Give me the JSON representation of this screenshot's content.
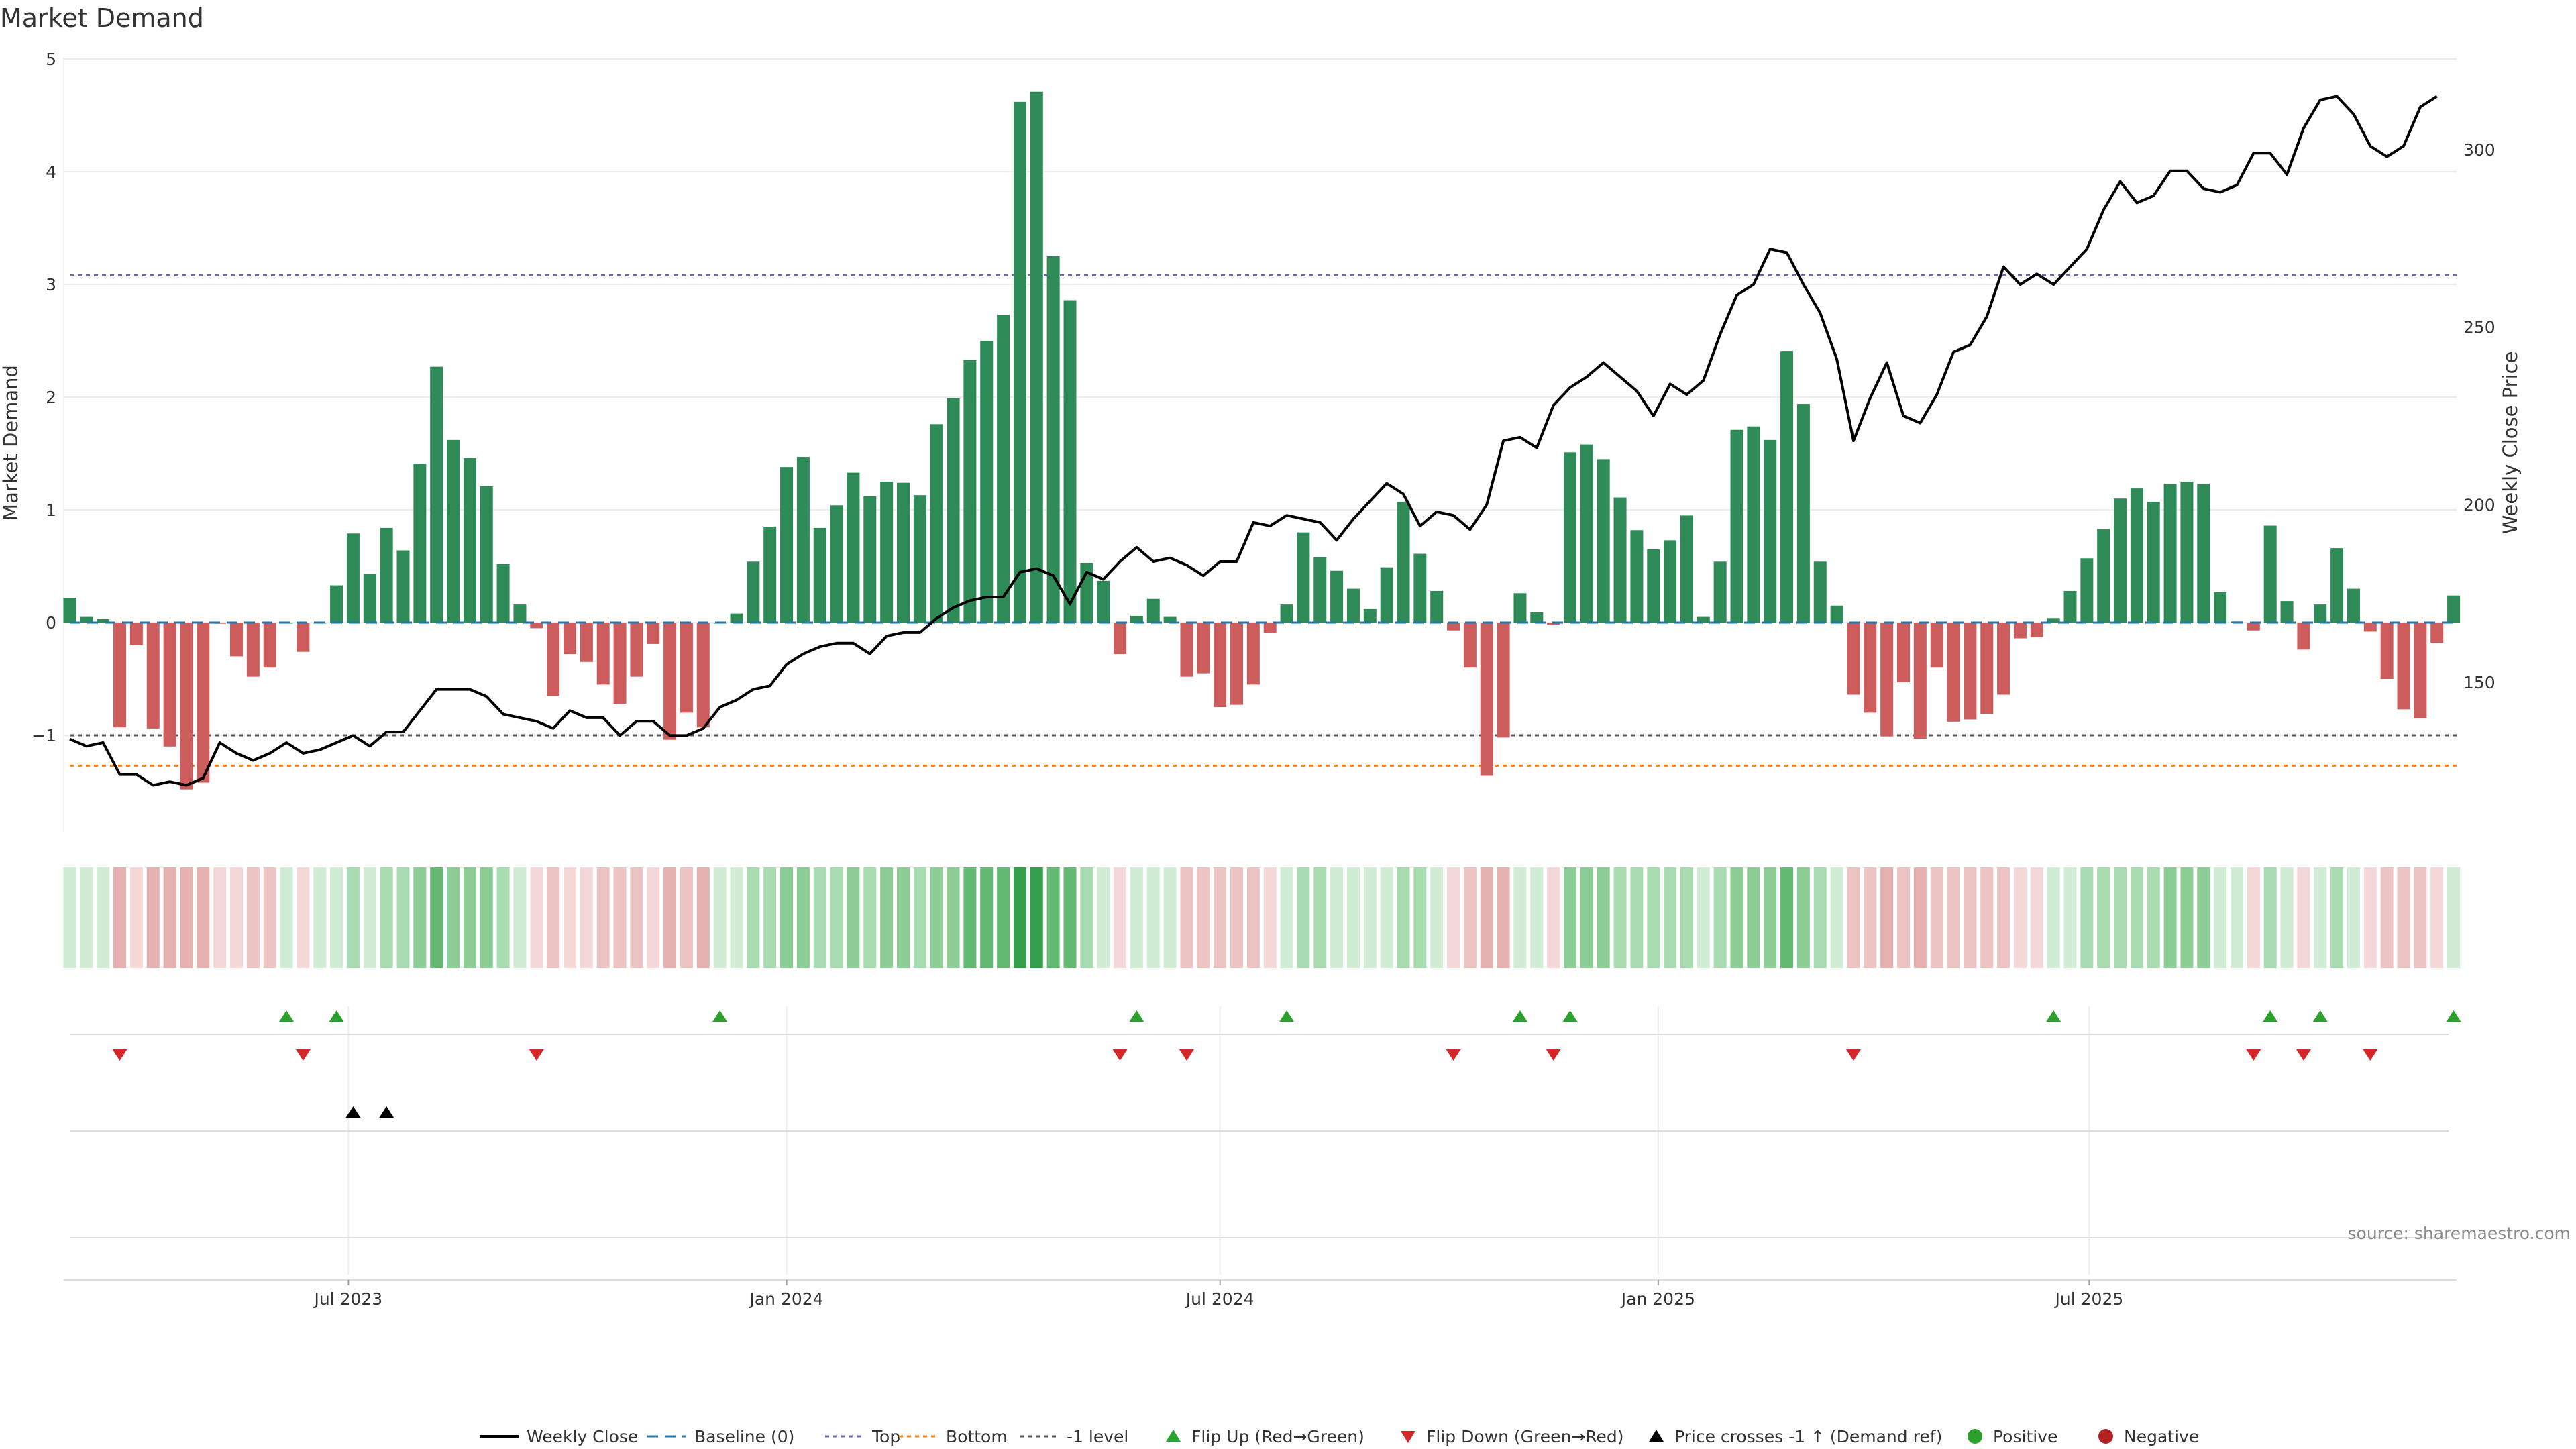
{
  "title": "Market Demand",
  "source": "source: sharemaestro.com",
  "colors": {
    "positive": "#2e8b57",
    "negative": "#cd5c5c",
    "line": "#000000",
    "baseline": "#1f77b4",
    "top": "#6b6bab",
    "bottom": "#ff7f0e",
    "minus_one": "#555555",
    "flip_up": "#2ca02c",
    "flip_down": "#d62728",
    "cross": "#000000",
    "positive_dot": "#2ca02c",
    "negative_dot": "#b22222"
  },
  "chart_data": {
    "type": "bar",
    "start_date": "2023-03-06",
    "frequency": "weekly",
    "xlabel": "",
    "ylabel": "Market Demand",
    "y2label": "Weekly Close Price",
    "ylim": [
      -1.8,
      5.0
    ],
    "y2lim": [
      110,
      325
    ],
    "yticks": [
      "−1",
      "0",
      "1",
      "2",
      "3",
      "4",
      "5"
    ],
    "y2ticks": [
      "150",
      "200",
      "250",
      "300"
    ],
    "xticks": [
      {
        "label": "Jul 2023",
        "date": "2023-07-01"
      },
      {
        "label": "Jan 2024",
        "date": "2024-01-01"
      },
      {
        "label": "Jul 2024",
        "date": "2024-07-01"
      },
      {
        "label": "Jan 2025",
        "date": "2025-01-01"
      },
      {
        "label": "Jul 2025",
        "date": "2025-07-01"
      }
    ],
    "levels": {
      "top": 3.08,
      "bottom": -1.27,
      "minus_one": -1.0,
      "baseline": 0
    },
    "demand": [
      0.22,
      0.05,
      0.03,
      -0.93,
      -0.2,
      -0.94,
      -1.1,
      -1.48,
      -1.42,
      -0.01,
      -0.3,
      -0.48,
      -0.4,
      0.0,
      -0.26,
      0.0,
      0.33,
      0.79,
      0.43,
      0.84,
      0.64,
      1.41,
      2.27,
      1.62,
      1.46,
      1.21,
      0.52,
      0.16,
      -0.05,
      -0.65,
      -0.28,
      -0.35,
      -0.55,
      -0.72,
      -0.48,
      -0.19,
      -1.04,
      -0.8,
      -0.93,
      0.0,
      0.08,
      0.54,
      0.85,
      1.38,
      1.47,
      0.84,
      1.04,
      1.33,
      1.12,
      1.25,
      1.24,
      1.13,
      1.76,
      1.99,
      2.33,
      2.5,
      2.73,
      4.62,
      4.71,
      3.25,
      2.86,
      0.53,
      0.37,
      -0.28,
      0.06,
      0.21,
      0.05,
      -0.48,
      -0.45,
      -0.75,
      -0.73,
      -0.55,
      -0.09,
      0.16,
      0.8,
      0.58,
      0.46,
      0.3,
      0.12,
      0.49,
      1.07,
      0.61,
      0.28,
      -0.07,
      -0.4,
      -1.36,
      -1.02,
      0.26,
      0.09,
      -0.02,
      1.51,
      1.58,
      1.45,
      1.11,
      0.82,
      0.65,
      0.73,
      0.95,
      0.05,
      0.54,
      1.71,
      1.74,
      1.62,
      2.41,
      1.94,
      0.54,
      0.15,
      -0.64,
      -0.8,
      -1.01,
      -0.53,
      -1.03,
      -0.4,
      -0.88,
      -0.86,
      -0.81,
      -0.64,
      -0.14,
      -0.13,
      0.04,
      0.28,
      0.57,
      0.83,
      1.1,
      1.19,
      1.07,
      1.23,
      1.25,
      1.23,
      0.27,
      0.01,
      -0.07,
      0.86,
      0.19,
      -0.24,
      0.16,
      0.66,
      0.3,
      -0.08,
      -0.5,
      -0.77,
      -0.85,
      -0.18,
      0.24
    ],
    "price": [
      134,
      132,
      133,
      124,
      124,
      121,
      122,
      121,
      123,
      133,
      130,
      128,
      130,
      133,
      130,
      131,
      133,
      135,
      132,
      136,
      136,
      142,
      148,
      148,
      148,
      146,
      141,
      140,
      139,
      137,
      142,
      140,
      140,
      135,
      139,
      139,
      135,
      135,
      137,
      143,
      145,
      148,
      149,
      155,
      158,
      160,
      161,
      161,
      158,
      163,
      164,
      164,
      168,
      171,
      173,
      174,
      174,
      181,
      182,
      180,
      172,
      181,
      179,
      184,
      188,
      184,
      185,
      183,
      180,
      184,
      184,
      195,
      194,
      197,
      196,
      195,
      190,
      196,
      201,
      206,
      203,
      194,
      198,
      197,
      193,
      200,
      218,
      219,
      216,
      228,
      233,
      236,
      240,
      236,
      232,
      225,
      234,
      231,
      235,
      248,
      259,
      262,
      272,
      271,
      262,
      254,
      241,
      218,
      230,
      240,
      225,
      223,
      231,
      243,
      245,
      253,
      267,
      262,
      265,
      262,
      267,
      272,
      283,
      291,
      285,
      287,
      294,
      294,
      289,
      288,
      290,
      299,
      299,
      293,
      306,
      314,
      315,
      310,
      301,
      298,
      301,
      312,
      315
    ],
    "flip_up_weeks": [
      13,
      16,
      39,
      64,
      73,
      87,
      90,
      119,
      132,
      135,
      143
    ],
    "flip_down_weeks": [
      3,
      14,
      28,
      63,
      67,
      83,
      89,
      107,
      131,
      134,
      138
    ],
    "price_cross_weeks": [
      17,
      19
    ],
    "legend": [
      {
        "key": "line",
        "label": "Weekly Close"
      },
      {
        "key": "baseline",
        "label": "Baseline (0)"
      },
      {
        "key": "top",
        "label": "Top"
      },
      {
        "key": "bottom",
        "label": "Bottom"
      },
      {
        "key": "minus_one",
        "label": "-1 level"
      },
      {
        "key": "flip_up",
        "label": "Flip Up (Red→Green)"
      },
      {
        "key": "flip_down",
        "label": "Flip Down (Green→Red)"
      },
      {
        "key": "cross",
        "label": "Price crosses -1 ↑ (Demand ref)"
      },
      {
        "key": "positive_dot",
        "label": "Positive"
      },
      {
        "key": "negative_dot",
        "label": "Negative"
      }
    ]
  }
}
